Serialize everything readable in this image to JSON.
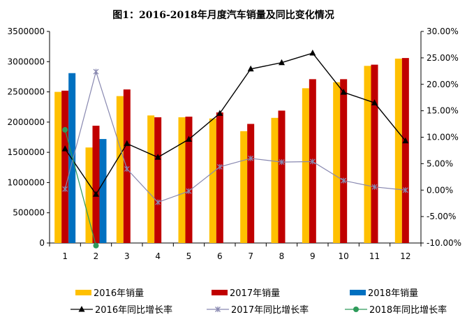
{
  "chart_data": {
    "type": "bar",
    "title": "图1：2016-2018年月度汽车销量及同比变化情况",
    "categories": [
      "1",
      "2",
      "3",
      "4",
      "5",
      "6",
      "7",
      "8",
      "9",
      "10",
      "11",
      "12"
    ],
    "y_left": {
      "min": 0,
      "max": 3500000,
      "ticks": [
        "0",
        "500000",
        "1000000",
        "1500000",
        "2000000",
        "2500000",
        "3000000",
        "3500000"
      ],
      "tick_values": [
        0,
        500000,
        1000000,
        1500000,
        2000000,
        2500000,
        3000000,
        3500000
      ]
    },
    "y_right": {
      "min": -10,
      "max": 30,
      "ticks": [
        "-10.00%",
        "-5.00%",
        "0.00%",
        "5.00%",
        "10.00%",
        "15.00%",
        "20.00%",
        "25.00%",
        "30.00%"
      ],
      "tick_values": [
        -10,
        -5,
        0,
        5,
        10,
        15,
        20,
        25,
        30
      ]
    },
    "bar_series": [
      {
        "name": "2016年销量",
        "color": "#FFC000",
        "values": [
          2500000,
          1580000,
          2430000,
          2110000,
          2080000,
          2060000,
          1850000,
          2070000,
          2560000,
          2660000,
          2930000,
          3050000
        ]
      },
      {
        "name": "2017年销量",
        "color": "#C00000",
        "values": [
          2520000,
          1940000,
          2540000,
          2080000,
          2090000,
          2160000,
          1970000,
          2190000,
          2710000,
          2710000,
          2950000,
          3060000
        ]
      },
      {
        "name": "2018年销量",
        "color": "#0070C0",
        "values": [
          2810000,
          1720000,
          null,
          null,
          null,
          null,
          null,
          null,
          null,
          null,
          null,
          null
        ]
      }
    ],
    "line_series": [
      {
        "name": "2016年同比增长率",
        "color": "#000000",
        "marker": "triangle",
        "values": [
          7.8,
          -0.8,
          8.8,
          6.2,
          9.6,
          14.5,
          22.9,
          24.1,
          25.9,
          18.5,
          16.5,
          9.3
        ]
      },
      {
        "name": "2017年同比增长率",
        "color": "#8888B0",
        "marker": "star",
        "values": [
          0.2,
          22.4,
          4.0,
          -2.3,
          -0.2,
          4.4,
          6.0,
          5.3,
          5.4,
          1.8,
          0.6,
          0.0
        ]
      },
      {
        "name": "2018年同比增长率",
        "color": "#2E9B5A",
        "marker": "circle",
        "values": [
          11.4,
          -10.5,
          null,
          null,
          null,
          null,
          null,
          null,
          null,
          null,
          null,
          null
        ]
      }
    ],
    "grid": false,
    "legend_position": "bottom"
  }
}
